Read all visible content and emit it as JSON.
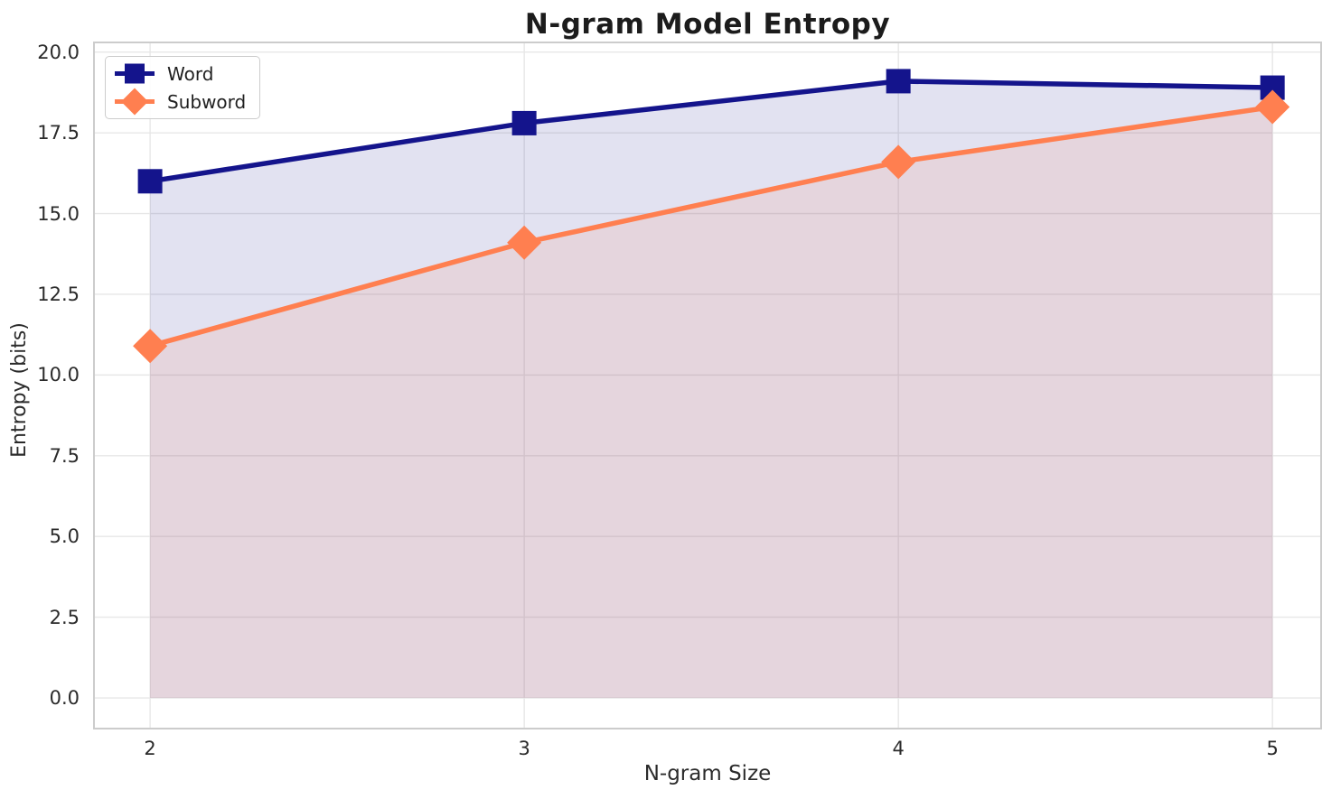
{
  "chart_data": {
    "type": "line",
    "title": "N-gram Model Entropy",
    "xlabel": "N-gram Size",
    "ylabel": "Entropy (bits)",
    "x": [
      2,
      3,
      4,
      5
    ],
    "series": [
      {
        "name": "Word",
        "color": "#14148c",
        "marker": "square",
        "values": [
          16.0,
          17.8,
          19.1,
          18.9
        ],
        "fill_to_zero": true,
        "fill_alpha": 0.12
      },
      {
        "name": "Subword",
        "color": "#ff7f50",
        "marker": "diamond",
        "values": [
          10.9,
          14.1,
          16.6,
          18.3
        ],
        "fill_to_zero": true,
        "fill_alpha": 0.12
      }
    ],
    "xticks": {
      "values": [
        2,
        3,
        4,
        5
      ],
      "labels": [
        "2",
        "3",
        "4",
        "5"
      ]
    },
    "yticks": {
      "values": [
        0,
        2.5,
        5,
        7.5,
        10,
        12.5,
        15,
        17.5,
        20
      ],
      "labels": [
        "0.0",
        "2.5",
        "5.0",
        "7.5",
        "10.0",
        "12.5",
        "15.0",
        "17.5",
        "20.0"
      ]
    },
    "xlim": [
      1.85,
      5.13
    ],
    "ylim": [
      -0.95,
      20.3
    ],
    "grid": true,
    "grid_color": "#e7e7e7",
    "spine_color": "#cccccc",
    "legend": {
      "position": "upper-left",
      "entries": [
        "Word",
        "Subword"
      ]
    }
  }
}
